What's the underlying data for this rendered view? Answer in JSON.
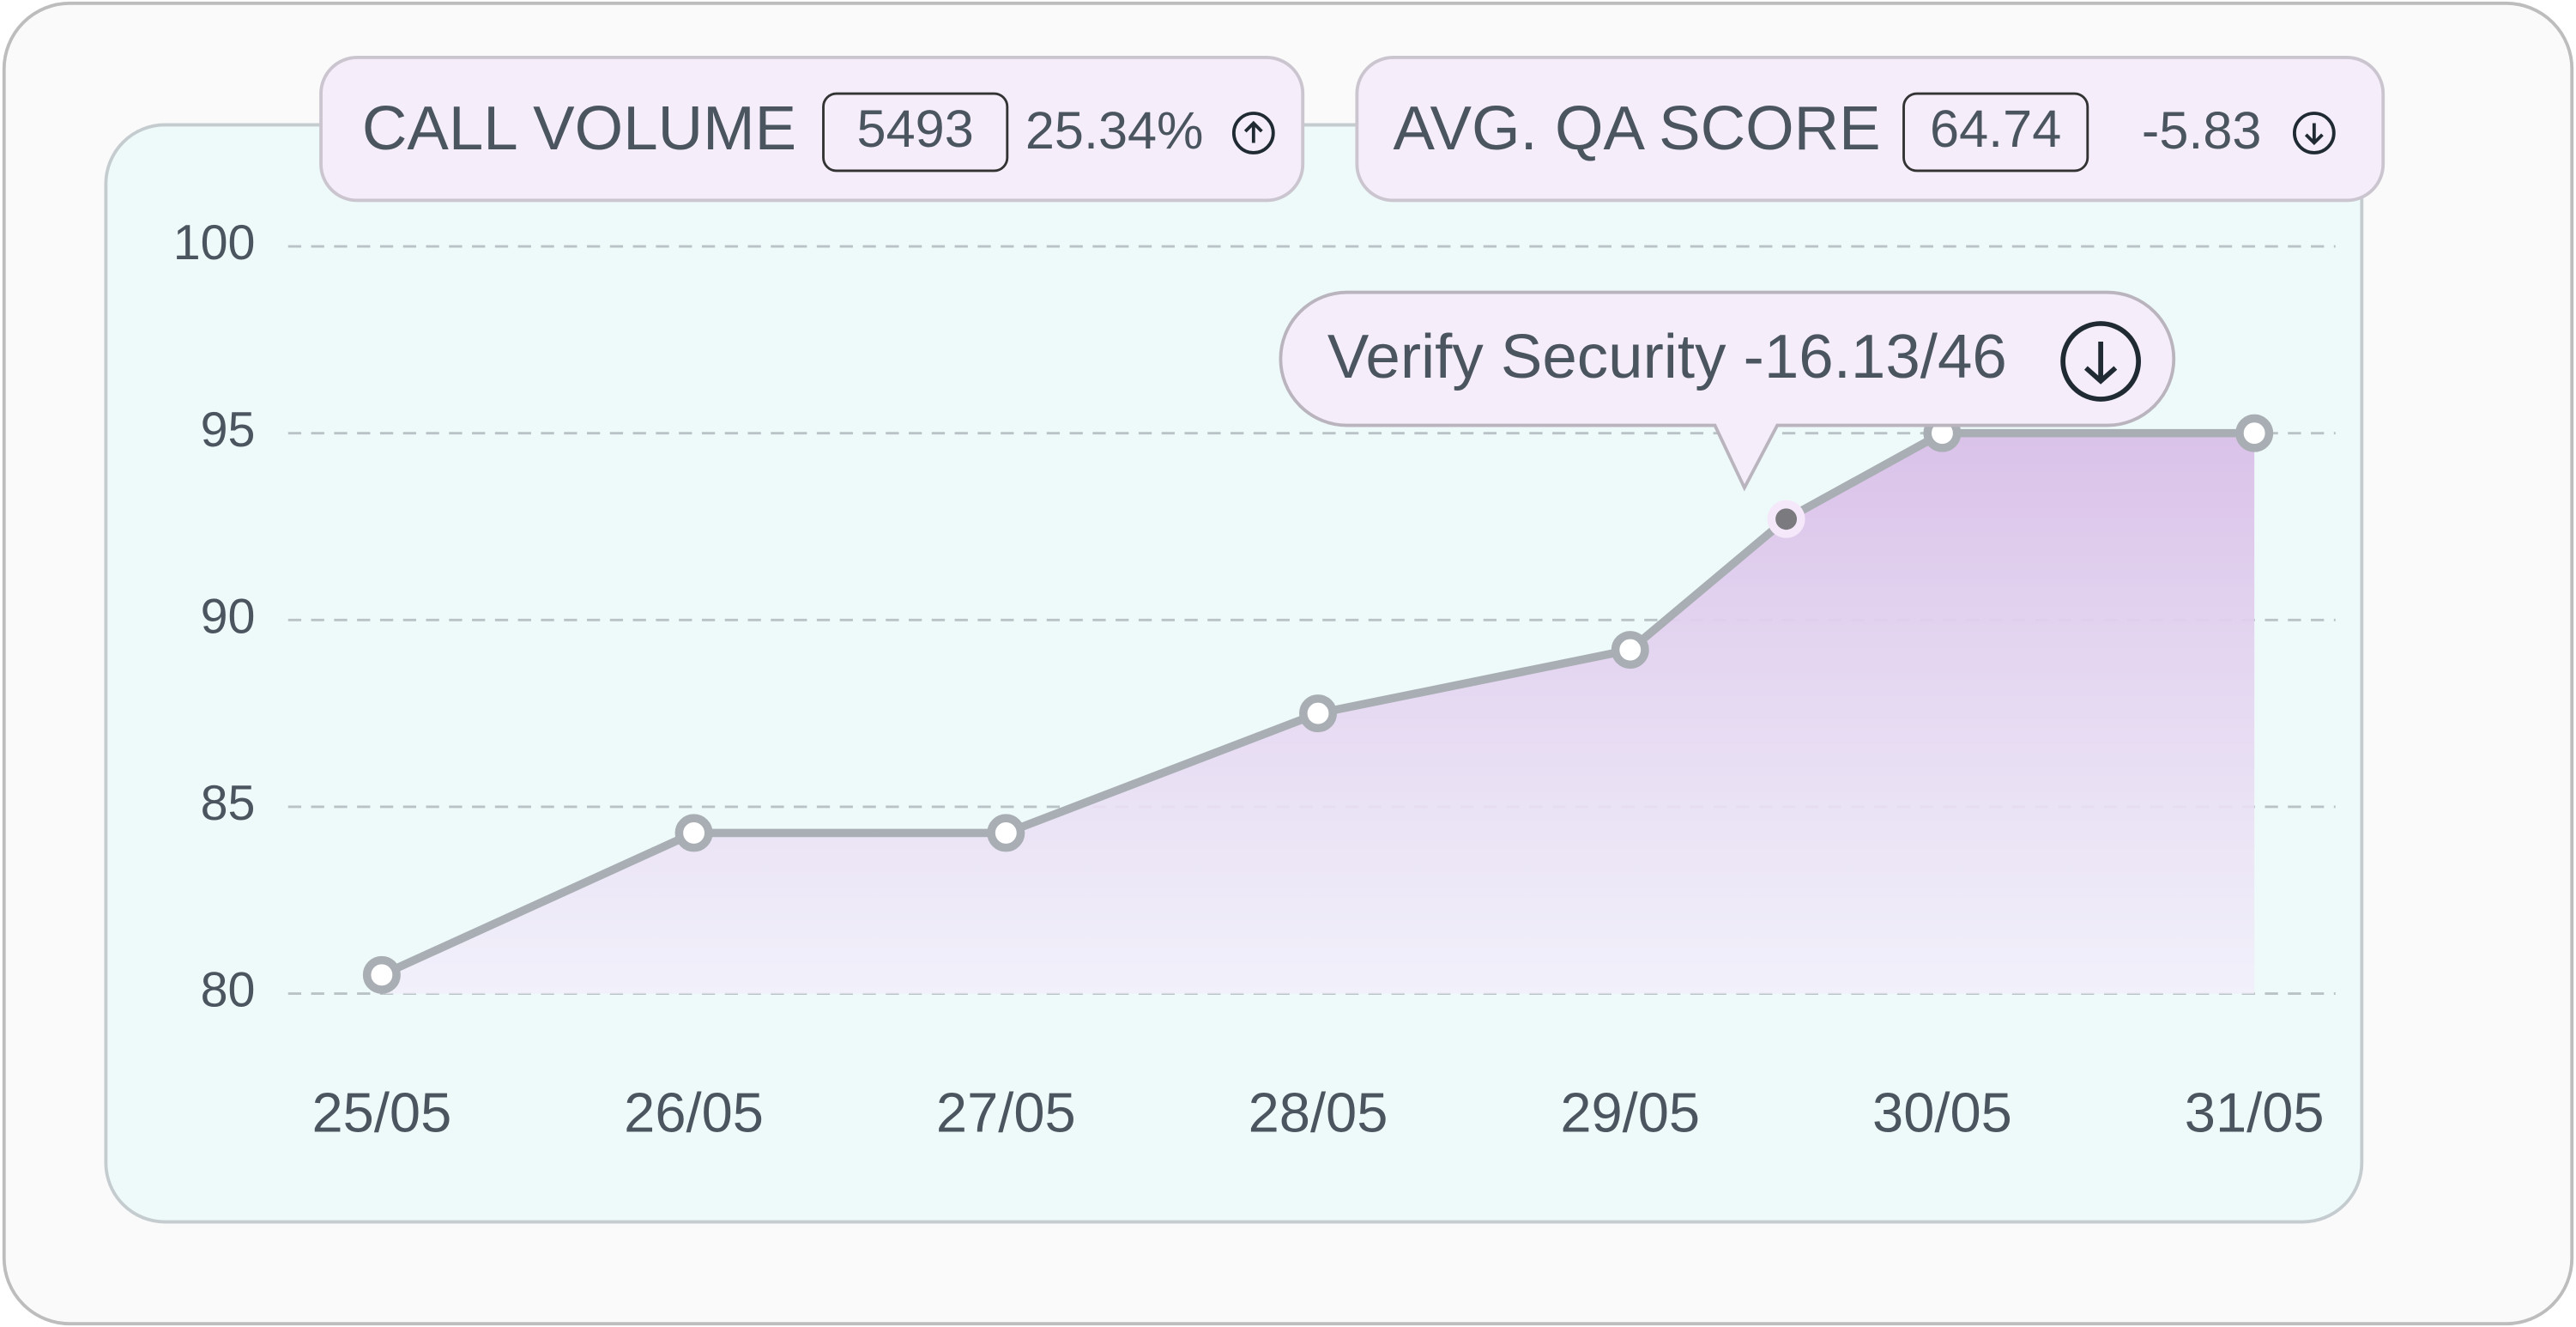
{
  "header": {
    "kpis": [
      {
        "label": "CALL VOLUME",
        "value": "5493",
        "change": "25.34%"
      },
      {
        "label": "AVG. QA SCORE",
        "value": "64.74",
        "change": "-5.83"
      }
    ]
  },
  "chart_data": {
    "type": "area",
    "x": [
      25,
      26,
      27,
      28,
      29,
      29.5,
      30,
      31
    ],
    "values": [
      80.5,
      84.3,
      84.3,
      87.5,
      89.2,
      92.7,
      95,
      95
    ],
    "xlim": [
      24.7,
      31.26
    ],
    "xticks": [
      {
        "value": 25,
        "label": "25/05"
      },
      {
        "value": 26,
        "label": "26/05"
      },
      {
        "value": 27,
        "label": "27/05"
      },
      {
        "value": 28,
        "label": "28/05"
      },
      {
        "value": 29,
        "label": "29/05"
      },
      {
        "value": 30,
        "label": "30/05"
      },
      {
        "value": 31,
        "label": "31/05"
      }
    ],
    "ylim": [
      80,
      100
    ],
    "yticks": [
      80,
      85,
      90,
      95,
      100
    ],
    "grid": true,
    "color": "#a8aeb3",
    "fill_color": "#d9bfe8",
    "highlight_index": 5,
    "annotations": [
      "Verify Security -16.13/46"
    ]
  }
}
